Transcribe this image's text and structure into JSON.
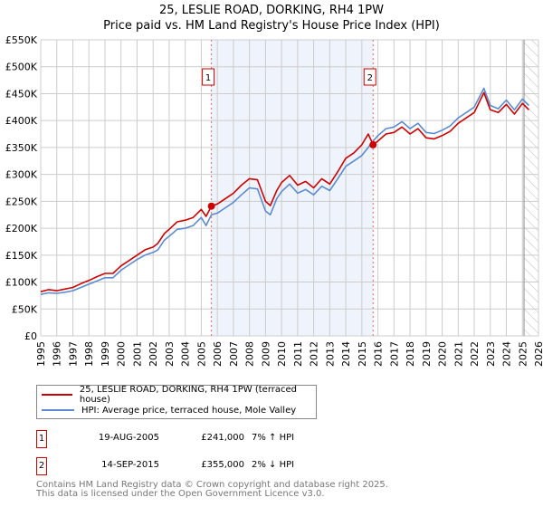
{
  "chart_data": {
    "type": "line",
    "title": "25, LESLIE ROAD, DORKING, RH4 1PW",
    "subtitle": "Price paid vs. HM Land Registry's House Price Index (HPI)",
    "xlim": [
      1995,
      2026
    ],
    "ylim": [
      0,
      550000
    ],
    "x_ticks": [
      "1995",
      "1996",
      "1997",
      "1998",
      "1999",
      "2000",
      "2001",
      "2002",
      "2003",
      "2004",
      "2005",
      "2006",
      "2007",
      "2008",
      "2009",
      "2010",
      "2011",
      "2012",
      "2013",
      "2014",
      "2015",
      "2016",
      "2017",
      "2018",
      "2019",
      "2020",
      "2021",
      "2022",
      "2023",
      "2024",
      "2025",
      "2026"
    ],
    "y_ticks": [
      {
        "v": 0,
        "label": "£0"
      },
      {
        "v": 50000,
        "label": "£50K"
      },
      {
        "v": 100000,
        "label": "£100K"
      },
      {
        "v": 150000,
        "label": "£150K"
      },
      {
        "v": 200000,
        "label": "£200K"
      },
      {
        "v": 250000,
        "label": "£250K"
      },
      {
        "v": 300000,
        "label": "£300K"
      },
      {
        "v": 350000,
        "label": "£350K"
      },
      {
        "v": 400000,
        "label": "£400K"
      },
      {
        "v": 450000,
        "label": "£450K"
      },
      {
        "v": 500000,
        "label": "£500K"
      },
      {
        "v": 550000,
        "label": "£550K"
      }
    ],
    "grid": true,
    "shaded_range": [
      2005.63,
      2015.7
    ],
    "forecast_hatch_from": 2025.1,
    "series": [
      {
        "name": "25, LESLIE ROAD, DORKING, RH4 1PW (terraced house)",
        "color": "#cc0000",
        "x": [
          1995,
          1995.5,
          1996,
          1996.5,
          1997,
          1997.5,
          1998,
          1998.5,
          1999,
          1999.5,
          2000,
          2000.5,
          2001,
          2001.5,
          2002,
          2002.3,
          2002.7,
          2003,
          2003.5,
          2004,
          2004.5,
          2005,
          2005.3,
          2005.63,
          2006,
          2006.5,
          2007,
          2007.5,
          2008,
          2008.5,
          2009,
          2009.3,
          2009.7,
          2010,
          2010.5,
          2011,
          2011.5,
          2012,
          2012.5,
          2013,
          2013.5,
          2014,
          2014.5,
          2015,
          2015.4,
          2015.7,
          2016,
          2016.5,
          2017,
          2017.5,
          2018,
          2018.5,
          2019,
          2019.5,
          2020,
          2020.5,
          2021,
          2021.5,
          2022,
          2022.6,
          2023,
          2023.5,
          2024,
          2024.5,
          2025,
          2025.4
        ],
        "y": [
          82000,
          86000,
          84000,
          87000,
          90000,
          97000,
          103000,
          110000,
          116000,
          116000,
          130000,
          140000,
          150000,
          160000,
          165000,
          172000,
          190000,
          198000,
          212000,
          215000,
          220000,
          235000,
          222000,
          241000,
          245000,
          255000,
          265000,
          280000,
          292000,
          290000,
          250000,
          242000,
          270000,
          285000,
          298000,
          280000,
          287000,
          275000,
          292000,
          282000,
          305000,
          330000,
          340000,
          355000,
          375000,
          355000,
          362000,
          375000,
          378000,
          388000,
          375000,
          385000,
          368000,
          366000,
          372000,
          380000,
          395000,
          405000,
          415000,
          452000,
          420000,
          415000,
          430000,
          412000,
          432000,
          420000
        ]
      },
      {
        "name": "HPI: Average price, terraced house, Mole Valley",
        "color": "#5b8ccf",
        "x": [
          1995,
          1995.5,
          1996,
          1996.5,
          1997,
          1997.5,
          1998,
          1998.5,
          1999,
          1999.5,
          2000,
          2000.5,
          2001,
          2001.5,
          2002,
          2002.3,
          2002.7,
          2003,
          2003.5,
          2004,
          2004.5,
          2005,
          2005.3,
          2005.63,
          2006,
          2006.5,
          2007,
          2007.5,
          2008,
          2008.5,
          2009,
          2009.3,
          2009.7,
          2010,
          2010.5,
          2011,
          2011.5,
          2012,
          2012.5,
          2013,
          2013.5,
          2014,
          2014.5,
          2015,
          2015.4,
          2015.7,
          2016,
          2016.5,
          2017,
          2017.5,
          2018,
          2018.5,
          2019,
          2019.5,
          2020,
          2020.5,
          2021,
          2021.5,
          2022,
          2022.6,
          2023,
          2023.5,
          2024,
          2024.5,
          2025,
          2025.4
        ],
        "y": [
          77000,
          80000,
          79000,
          81000,
          84000,
          90000,
          96000,
          102000,
          108000,
          108000,
          122000,
          132000,
          142000,
          150000,
          155000,
          160000,
          178000,
          185000,
          198000,
          200000,
          205000,
          220000,
          205000,
          225000,
          228000,
          238000,
          248000,
          262000,
          275000,
          273000,
          232000,
          225000,
          255000,
          268000,
          282000,
          265000,
          272000,
          262000,
          278000,
          270000,
          292000,
          315000,
          325000,
          335000,
          350000,
          362000,
          372000,
          385000,
          388000,
          398000,
          385000,
          395000,
          378000,
          376000,
          382000,
          390000,
          405000,
          415000,
          425000,
          460000,
          428000,
          422000,
          438000,
          420000,
          440000,
          428000
        ]
      }
    ],
    "sales": [
      {
        "num": "1",
        "x": 2005.63,
        "y": 241000,
        "date": "19-AUG-2005",
        "price": "£241,000",
        "hpi": "7% ↑ HPI"
      },
      {
        "num": "2",
        "x": 2015.7,
        "y": 355000,
        "date": "14-SEP-2015",
        "price": "£355,000",
        "hpi": "2% ↓ HPI"
      }
    ],
    "legend_placement": "below"
  },
  "footer": {
    "line1": "Contains HM Land Registry data © Crown copyright and database right 2025.",
    "line2": "This data is licensed under the Open Government Licence v3.0."
  }
}
